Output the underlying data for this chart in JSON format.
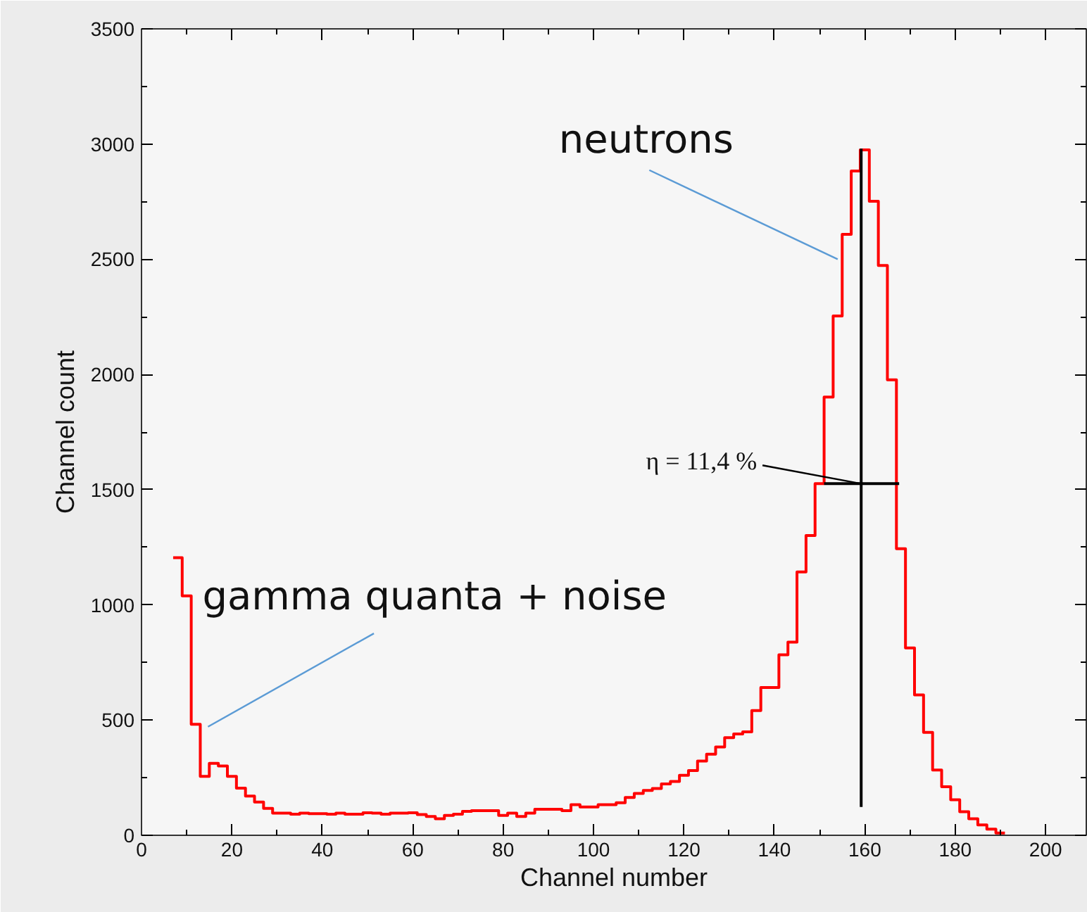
{
  "chart_data": {
    "type": "histogram",
    "xlabel": "Channel number",
    "ylabel": "Channel count",
    "color": "#ff0000",
    "bins": [
      7,
      9,
      11,
      13,
      15,
      17,
      19,
      21,
      23,
      25,
      27,
      29,
      31,
      33,
      35,
      37,
      39,
      41,
      43,
      45,
      47,
      49,
      51,
      53,
      55,
      57,
      59,
      61,
      63,
      65,
      67,
      69,
      71,
      73,
      75,
      77,
      79,
      81,
      83,
      85,
      87,
      89,
      91,
      93,
      95,
      97,
      99,
      101,
      103,
      105,
      107,
      109,
      111,
      113,
      115,
      117,
      119,
      121,
      123,
      125,
      127,
      129,
      131,
      133,
      135,
      137,
      139,
      141,
      143,
      145,
      147,
      149,
      151,
      153,
      155,
      157,
      159,
      161,
      163,
      165,
      167,
      169,
      171,
      173,
      175,
      177,
      179,
      181,
      183,
      185,
      187,
      189,
      191
    ],
    "values": [
      1205,
      1039,
      482,
      256,
      312,
      301,
      256,
      205,
      170,
      144,
      117,
      96,
      96,
      92,
      96,
      94,
      94,
      92,
      96,
      92,
      92,
      98,
      96,
      92,
      96,
      96,
      98,
      90,
      82,
      72,
      86,
      92,
      104,
      107,
      107,
      107,
      86,
      96,
      82,
      96,
      113,
      113,
      113,
      107,
      133,
      123,
      123,
      133,
      133,
      141,
      164,
      182,
      195,
      203,
      223,
      234,
      260,
      281,
      322,
      352,
      383,
      424,
      440,
      449,
      541,
      641,
      641,
      783,
      838,
      1143,
      1301,
      1526,
      1902,
      2254,
      2608,
      2883,
      2975,
      2752,
      2473,
      1977,
      1244,
      813,
      609,
      447,
      283,
      211,
      154,
      102,
      72,
      45,
      27,
      10
    ],
    "series": [
      {
        "type": "line",
        "color": "#000000",
        "x": [
          159.2,
          159.2
        ],
        "values": [
          123,
          2980
        ]
      },
      {
        "type": "line",
        "color": "#000000",
        "x": [
          151,
          167.6
        ],
        "values": [
          1526,
          1526
        ]
      }
    ],
    "annotations": [
      {
        "text": "neutrons",
        "x": 154,
        "y": 2500
      },
      {
        "text": "gamma quanta + noise",
        "x": 14.7,
        "y": 471
      },
      {
        "text": "η = 11,4 %",
        "x": 159.2,
        "y": 1526
      }
    ],
    "xlim": [
      0,
      209
    ],
    "ylim": [
      0,
      3500
    ],
    "xticks": [
      0,
      20,
      40,
      60,
      80,
      100,
      120,
      140,
      160,
      180,
      200
    ],
    "yticks": [
      0,
      500,
      1000,
      1500,
      2000,
      2500,
      3000,
      3500
    ],
    "grid": false
  }
}
